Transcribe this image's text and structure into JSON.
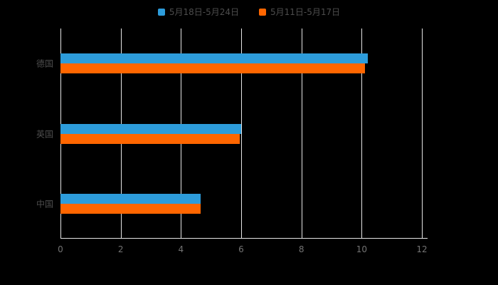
{
  "colors": {
    "background": "#000000",
    "gridline": "#e6e6e6",
    "category_text": "#4d4d4d",
    "tick_text": "#737373",
    "series_blue": "#2d9cdb",
    "series_orange": "#ff6600"
  },
  "chart_data": {
    "type": "bar",
    "orientation": "horizontal",
    "title": "",
    "xlabel": "",
    "ylabel": "",
    "categories": [
      "德国",
      "英国",
      "中国"
    ],
    "series": [
      {
        "name": "5月18日-5月24日",
        "color": "#2d9cdb",
        "values": [
          10.2,
          6.0,
          4.65
        ]
      },
      {
        "name": "5月11日-5月17日",
        "color": "#ff6600",
        "values": [
          10.1,
          5.95,
          4.65
        ]
      }
    ],
    "xlim": [
      0,
      12
    ],
    "xticks": [
      0,
      2,
      4,
      6,
      8,
      10,
      12
    ],
    "grid": true,
    "legend_position": "top"
  }
}
